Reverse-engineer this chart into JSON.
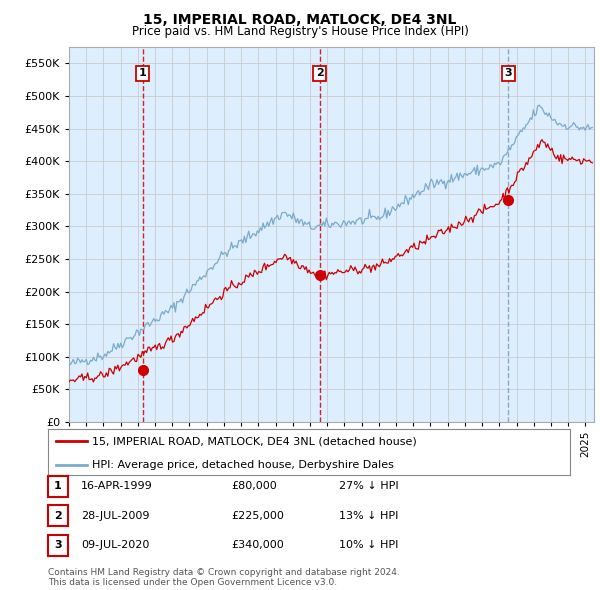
{
  "title": "15, IMPERIAL ROAD, MATLOCK, DE4 3NL",
  "subtitle": "Price paid vs. HM Land Registry's House Price Index (HPI)",
  "xlim_start": 1995.0,
  "xlim_end": 2025.5,
  "ylim": [
    0,
    575000
  ],
  "yticks": [
    0,
    50000,
    100000,
    150000,
    200000,
    250000,
    300000,
    350000,
    400000,
    450000,
    500000,
    550000
  ],
  "purchases": [
    {
      "year": 1999.29,
      "price": 80000,
      "label": "1"
    },
    {
      "year": 2009.57,
      "price": 225000,
      "label": "2"
    },
    {
      "year": 2020.52,
      "price": 340000,
      "label": "3"
    }
  ],
  "vlines_red": [
    1999.29,
    2009.57
  ],
  "vlines_blue": [
    2020.52
  ],
  "legend_line1": "15, IMPERIAL ROAD, MATLOCK, DE4 3NL (detached house)",
  "legend_line2": "HPI: Average price, detached house, Derbyshire Dales",
  "table_rows": [
    [
      "1",
      "16-APR-1999",
      "£80,000",
      "27% ↓ HPI"
    ],
    [
      "2",
      "28-JUL-2009",
      "£225,000",
      "13% ↓ HPI"
    ],
    [
      "3",
      "09-JUL-2020",
      "£340,000",
      "10% ↓ HPI"
    ]
  ],
  "footnote": "Contains HM Land Registry data © Crown copyright and database right 2024.\nThis data is licensed under the Open Government Licence v3.0.",
  "line_color_red": "#cc0000",
  "line_color_blue": "#7aabcc",
  "vline_color_red": "#cc0000",
  "vline_color_blue": "#8899bb",
  "grid_color": "#cccccc",
  "chart_bg": "#ddeeff",
  "background_color": "#ffffff"
}
